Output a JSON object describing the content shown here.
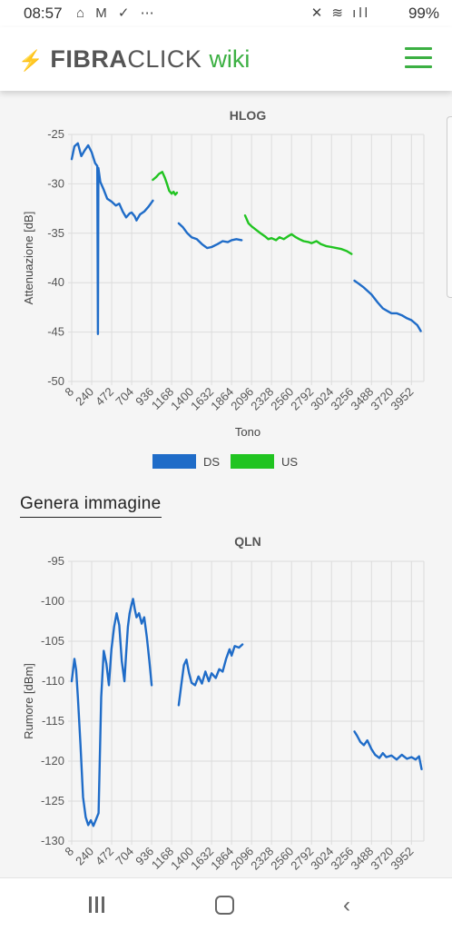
{
  "status_bar": {
    "time": "08:57",
    "battery": "99%",
    "left_icons": "⌂ M ✓ ⋯",
    "right_icons": "✕ ≋ ıll"
  },
  "header": {
    "logo_fibra": "FIBRA",
    "logo_click": "CLICK",
    "logo_wiki": "wiki"
  },
  "generate_image_link": "Genera immagine",
  "colors": {
    "ds": "#1f6cc8",
    "us": "#21c421",
    "accent": "#3cb043"
  },
  "chart_data": [
    {
      "type": "line",
      "title": "HLOG",
      "xlabel": "Tono",
      "ylabel": "Attenuazione [dB]",
      "xlim": [
        8,
        4096
      ],
      "ylim": [
        -50,
        -25
      ],
      "x_ticks": [
        8,
        240,
        472,
        704,
        936,
        1168,
        1400,
        1632,
        1864,
        2096,
        2328,
        2560,
        2792,
        3024,
        3256,
        3488,
        3720,
        3952
      ],
      "y_ticks": [
        -25,
        -30,
        -35,
        -40,
        -45,
        -50
      ],
      "grid": true,
      "legend": {
        "position": "bottom",
        "entries": [
          "DS",
          "US"
        ]
      },
      "series": [
        {
          "name": "DS",
          "color": "#1f6cc8",
          "segments": [
            [
              [
                8,
                -27.5
              ],
              [
                40,
                -26.2
              ],
              [
                80,
                -25.9
              ],
              [
                120,
                -27.2
              ],
              [
                160,
                -26.6
              ],
              [
                200,
                -26.1
              ],
              [
                240,
                -26.8
              ],
              [
                280,
                -27.9
              ],
              [
                305,
                -28.2
              ],
              [
                312,
                -45.2
              ],
              [
                318,
                -28.4
              ],
              [
                340,
                -29.8
              ],
              [
                380,
                -30.6
              ],
              [
                420,
                -31.5
              ],
              [
                472,
                -31.8
              ],
              [
                520,
                -32.2
              ],
              [
                560,
                -32.0
              ],
              [
                600,
                -32.8
              ],
              [
                640,
                -33.4
              ],
              [
                680,
                -33.0
              ],
              [
                704,
                -32.9
              ],
              [
                740,
                -33.3
              ],
              [
                760,
                -33.7
              ],
              [
                800,
                -33.1
              ],
              [
                850,
                -32.8
              ],
              [
                900,
                -32.3
              ],
              [
                950,
                -31.7
              ]
            ],
            [
              [
                1250,
                -34.0
              ],
              [
                1300,
                -34.4
              ],
              [
                1350,
                -35.0
              ],
              [
                1400,
                -35.4
              ],
              [
                1460,
                -35.6
              ],
              [
                1520,
                -36.1
              ],
              [
                1580,
                -36.5
              ],
              [
                1632,
                -36.4
              ],
              [
                1700,
                -36.1
              ],
              [
                1760,
                -35.8
              ],
              [
                1820,
                -35.9
              ],
              [
                1864,
                -35.7
              ],
              [
                1920,
                -35.6
              ],
              [
                1980,
                -35.7
              ]
            ],
            [
              [
                3290,
                -39.8
              ],
              [
                3340,
                -40.1
              ],
              [
                3400,
                -40.5
              ],
              [
                3488,
                -41.2
              ],
              [
                3560,
                -42.0
              ],
              [
                3620,
                -42.6
              ],
              [
                3680,
                -42.9
              ],
              [
                3720,
                -43.1
              ],
              [
                3780,
                -43.1
              ],
              [
                3840,
                -43.3
              ],
              [
                3900,
                -43.6
              ],
              [
                3952,
                -43.8
              ],
              [
                4020,
                -44.3
              ],
              [
                4060,
                -44.9
              ]
            ]
          ]
        },
        {
          "name": "US",
          "color": "#21c421",
          "segments": [
            [
              [
                950,
                -29.6
              ],
              [
                990,
                -29.3
              ],
              [
                1020,
                -29.0
              ],
              [
                1060,
                -28.8
              ],
              [
                1090,
                -29.4
              ],
              [
                1110,
                -29.9
              ],
              [
                1140,
                -30.7
              ],
              [
                1168,
                -31.0
              ],
              [
                1190,
                -30.8
              ],
              [
                1210,
                -31.1
              ],
              [
                1230,
                -30.9
              ]
            ],
            [
              [
                2020,
                -33.2
              ],
              [
                2060,
                -34.0
              ],
              [
                2096,
                -34.3
              ],
              [
                2140,
                -34.6
              ],
              [
                2200,
                -35.0
              ],
              [
                2250,
                -35.3
              ],
              [
                2290,
                -35.6
              ],
              [
                2328,
                -35.5
              ],
              [
                2380,
                -35.7
              ],
              [
                2420,
                -35.4
              ],
              [
                2470,
                -35.6
              ],
              [
                2520,
                -35.3
              ],
              [
                2560,
                -35.1
              ],
              [
                2610,
                -35.4
              ],
              [
                2650,
                -35.6
              ],
              [
                2700,
                -35.8
              ],
              [
                2760,
                -35.9
              ],
              [
                2792,
                -36.0
              ],
              [
                2850,
                -35.8
              ],
              [
                2900,
                -36.1
              ],
              [
                2960,
                -36.3
              ],
              [
                3024,
                -36.4
              ],
              [
                3080,
                -36.5
              ],
              [
                3140,
                -36.6
              ],
              [
                3200,
                -36.8
              ],
              [
                3256,
                -37.1
              ]
            ]
          ]
        }
      ]
    },
    {
      "type": "line",
      "title": "QLN",
      "xlabel": "",
      "ylabel": "Rumore [dBm]",
      "xlim": [
        8,
        4096
      ],
      "ylim": [
        -130,
        -95
      ],
      "x_ticks": [
        8,
        240,
        472,
        704,
        936,
        1168,
        1400,
        1632,
        1864,
        2096,
        2328,
        2560,
        2792,
        3024,
        3256,
        3488,
        3720,
        3952
      ],
      "y_ticks": [
        -95,
        -100,
        -105,
        -110,
        -115,
        -120,
        -125,
        -130
      ],
      "grid": true,
      "series": [
        {
          "name": "DS",
          "color": "#1f6cc8",
          "segments": [
            [
              [
                8,
                -110.0
              ],
              [
                40,
                -107.2
              ],
              [
                60,
                -108.6
              ],
              [
                80,
                -112.0
              ],
              [
                110,
                -118.0
              ],
              [
                140,
                -124.5
              ],
              [
                170,
                -127.0
              ],
              [
                200,
                -128.0
              ],
              [
                230,
                -127.4
              ],
              [
                260,
                -128.1
              ],
              [
                290,
                -127.3
              ],
              [
                320,
                -126.5
              ],
              [
                350,
                -112.0
              ],
              [
                380,
                -106.2
              ],
              [
                410,
                -107.8
              ],
              [
                440,
                -110.5
              ],
              [
                470,
                -106.0
              ],
              [
                500,
                -103.2
              ],
              [
                530,
                -101.5
              ],
              [
                560,
                -103.0
              ],
              [
                590,
                -107.5
              ],
              [
                620,
                -110.0
              ],
              [
                640,
                -106.5
              ],
              [
                660,
                -103.2
              ],
              [
                680,
                -101.5
              ],
              [
                704,
                -100.3
              ],
              [
                720,
                -99.7
              ],
              [
                740,
                -101.0
              ],
              [
                760,
                -102.0
              ],
              [
                790,
                -101.5
              ],
              [
                820,
                -102.8
              ],
              [
                850,
                -102.0
              ],
              [
                880,
                -104.5
              ],
              [
                910,
                -107.5
              ],
              [
                936,
                -110.5
              ]
            ],
            [
              [
                1250,
                -113.0
              ],
              [
                1280,
                -110.5
              ],
              [
                1310,
                -108.0
              ],
              [
                1340,
                -107.3
              ],
              [
                1370,
                -109.0
              ],
              [
                1400,
                -110.2
              ],
              [
                1440,
                -110.5
              ],
              [
                1480,
                -109.4
              ],
              [
                1520,
                -110.3
              ],
              [
                1560,
                -108.8
              ],
              [
                1600,
                -110.0
              ],
              [
                1632,
                -109.0
              ],
              [
                1680,
                -109.6
              ],
              [
                1720,
                -108.5
              ],
              [
                1760,
                -108.8
              ],
              [
                1800,
                -107.2
              ],
              [
                1840,
                -106.0
              ],
              [
                1864,
                -106.8
              ],
              [
                1900,
                -105.6
              ],
              [
                1950,
                -105.8
              ],
              [
                1990,
                -105.4
              ]
            ],
            [
              [
                3290,
                -116.3
              ],
              [
                3320,
                -116.8
              ],
              [
                3360,
                -117.6
              ],
              [
                3400,
                -118.0
              ],
              [
                3440,
                -117.4
              ],
              [
                3488,
                -118.5
              ],
              [
                3530,
                -119.2
              ],
              [
                3580,
                -119.6
              ],
              [
                3620,
                -119.0
              ],
              [
                3660,
                -119.5
              ],
              [
                3720,
                -119.3
              ],
              [
                3780,
                -119.8
              ],
              [
                3840,
                -119.2
              ],
              [
                3900,
                -119.7
              ],
              [
                3952,
                -119.5
              ],
              [
                4000,
                -119.8
              ],
              [
                4040,
                -119.4
              ],
              [
                4070,
                -121.0
              ]
            ]
          ]
        }
      ]
    }
  ]
}
